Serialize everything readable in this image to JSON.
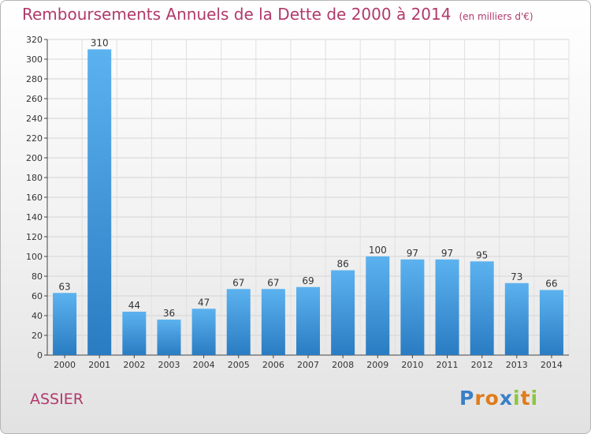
{
  "chart_data": {
    "type": "bar",
    "title": "Remboursements Annuels de la Dette de 2000 à 2014",
    "subtitle": "(en milliers d'€)",
    "categories": [
      "2000",
      "2001",
      "2002",
      "2003",
      "2004",
      "2005",
      "2006",
      "2007",
      "2008",
      "2009",
      "2010",
      "2011",
      "2012",
      "2013",
      "2014"
    ],
    "values": [
      63,
      310,
      44,
      36,
      47,
      67,
      67,
      69,
      86,
      100,
      97,
      97,
      95,
      73,
      66
    ],
    "ylim": [
      0,
      320
    ],
    "yticks": [
      0,
      20,
      40,
      60,
      80,
      100,
      120,
      140,
      160,
      180,
      200,
      220,
      240,
      260,
      280,
      300,
      320
    ],
    "grid": true,
    "bar_color": "#3a8fd6"
  },
  "commune": "ASSIER",
  "logo": {
    "letters": [
      "P",
      "r",
      "o",
      "x",
      "i",
      "t",
      "i"
    ],
    "colors": [
      "#3a7fc6",
      "#e07b1a",
      "#e07b1a",
      "#3a7fc6",
      "#8cc63f",
      "#e07b1a",
      "#8cc63f"
    ]
  }
}
